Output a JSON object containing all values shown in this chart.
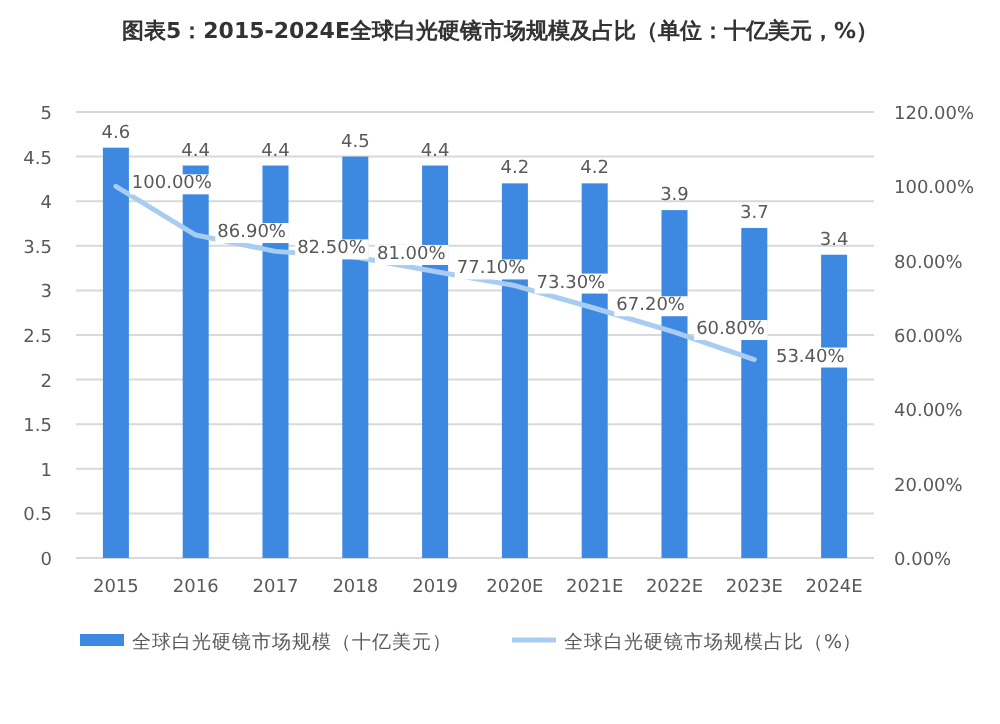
{
  "chart_data": {
    "type": "bar",
    "title": "图表5：2015-2024E全球白光硬镜市场规模及占比（单位：十亿美元，%）",
    "categories": [
      "2015",
      "2016",
      "2017",
      "2018",
      "2019",
      "2020E",
      "2021E",
      "2022E",
      "2023E",
      "2024E"
    ],
    "series": [
      {
        "name": "全球白光硬镜市场规模（十亿美元）",
        "color": "#3d88e1",
        "values": [
          4.6,
          4.4,
          4.4,
          4.5,
          4.4,
          4.2,
          4.2,
          3.9,
          3.7,
          3.4
        ]
      },
      {
        "name": "全球白光硬镜市场规模占比（%）",
        "type": "line",
        "axis": "y2",
        "color": "#a9cdf0",
        "values": [
          100,
          86.9,
          82.5,
          81,
          77.1,
          73.3,
          67.2,
          60.8,
          53.4,
          null
        ],
        "value_labels": [
          "100.00%",
          "86.90%",
          "82.50%",
          "81.00%",
          "77.10%",
          "73.30%",
          "67.20%",
          "60.80%",
          "53.40%",
          null
        ]
      }
    ],
    "ylim": [
      0,
      5
    ],
    "yticks": [
      0,
      0.5,
      1,
      1.5,
      2,
      2.5,
      3,
      3.5,
      4,
      4.5,
      5
    ],
    "y2lim": [
      0,
      120
    ],
    "y2ticks": [
      {
        "value": 0,
        "label": "0.00%"
      },
      {
        "value": 20,
        "label": "20.00%"
      },
      {
        "value": 40,
        "label": "40.00%"
      },
      {
        "value": 60,
        "label": "60.00%"
      },
      {
        "value": 80,
        "label": "80.00%"
      },
      {
        "value": 100,
        "label": "100.00%"
      },
      {
        "value": 120,
        "label": "120.00%"
      }
    ],
    "grid": "y",
    "legend": "bottom",
    "data_labels": true
  }
}
